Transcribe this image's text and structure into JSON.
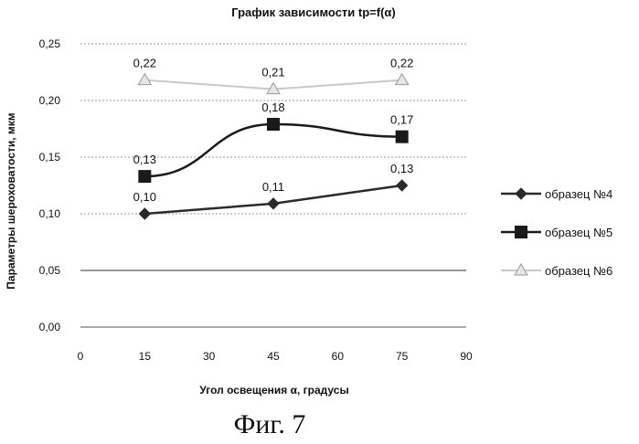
{
  "chart_data": {
    "type": "line",
    "title": "График зависимости tp=f(α)",
    "xlabel": "Угол освещения α, градусы",
    "ylabel": "Параметры шероховатости, мкм",
    "xlim": [
      0,
      90
    ],
    "ylim": [
      0,
      0.25
    ],
    "x_ticks": [
      "0",
      "15",
      "30",
      "45",
      "60",
      "75",
      "90"
    ],
    "y_ticks": [
      "0,00",
      "0,05",
      "0,10",
      "0,15",
      "0,20",
      "0,25"
    ],
    "grid": "horizontal dotted",
    "legend_position": "right",
    "x": [
      15,
      45,
      75
    ],
    "series": [
      {
        "name": "образец №4",
        "values": [
          0.1,
          0.109,
          0.125
        ],
        "labels": [
          "0,10",
          "0,11",
          "0,13"
        ],
        "color": "#2a2a2a",
        "marker": "diamond"
      },
      {
        "name": "образец №5",
        "values": [
          0.133,
          0.179,
          0.168
        ],
        "labels": [
          "0,13",
          "0,18",
          "0,17"
        ],
        "color": "#1a1a1a",
        "marker": "square"
      },
      {
        "name": "образец №6",
        "values": [
          0.218,
          0.21,
          0.218
        ],
        "labels": [
          "0,22",
          "0,21",
          "0,22"
        ],
        "color": "#c8c8c8",
        "marker": "triangle"
      }
    ]
  },
  "caption": "Фиг. 7"
}
